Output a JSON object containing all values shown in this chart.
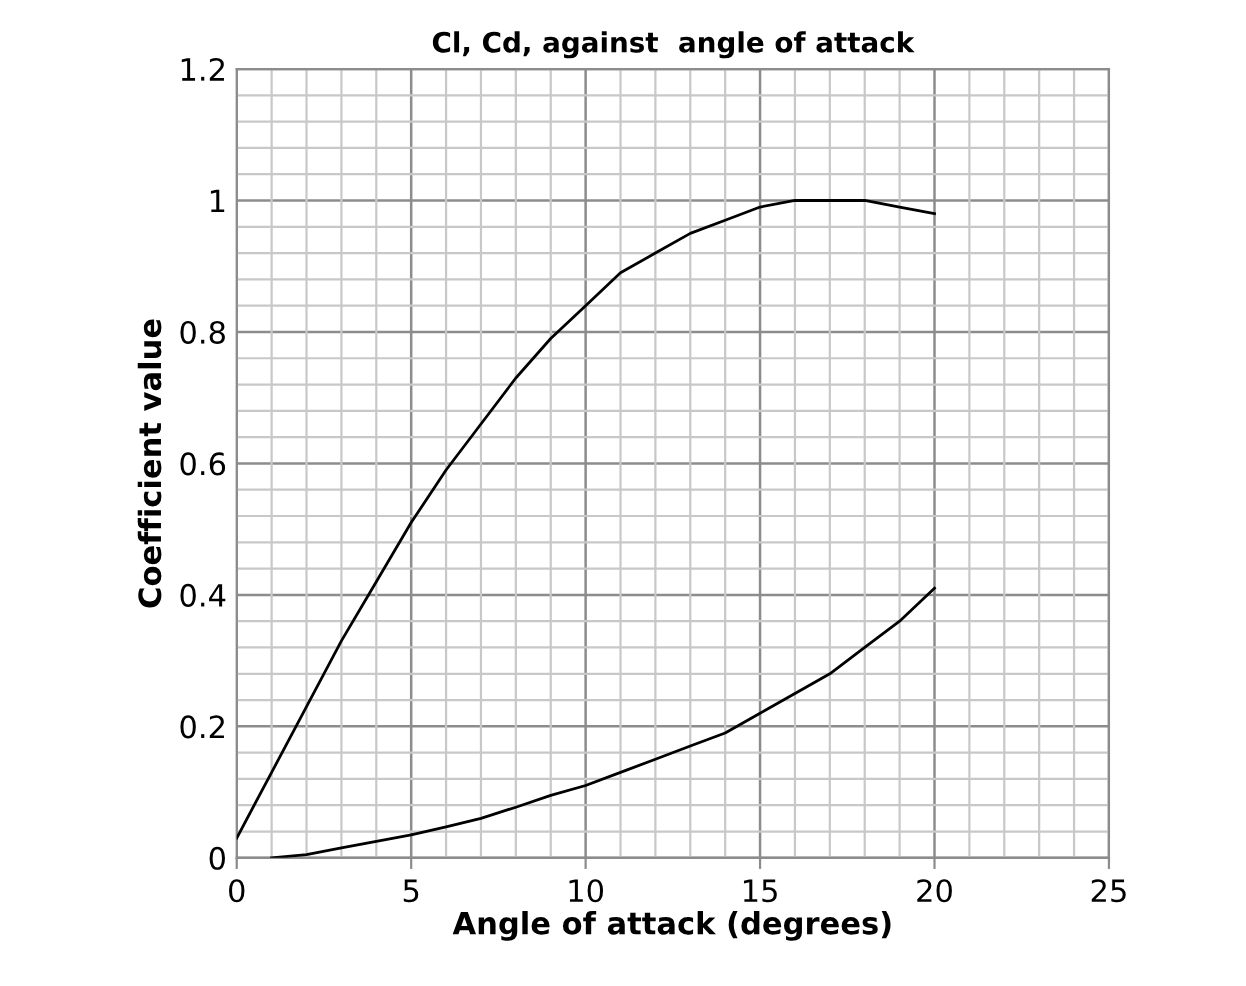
{
  "chart_data": {
    "type": "line",
    "title": "Cl, Cd, against  angle of attack",
    "xlabel": "Angle of attack (degrees)",
    "ylabel": "Coefficient value",
    "xlim": [
      0,
      25
    ],
    "xticks": [
      0,
      5,
      10,
      15,
      20,
      25
    ],
    "ylim": [
      0,
      1.2
    ],
    "yticks": [
      0,
      0.2,
      0.4,
      0.6,
      0.8,
      1,
      1.2
    ],
    "grid": true,
    "marker": "none",
    "line_style": "solid",
    "series": [
      {
        "color": "#000000",
        "x": [
          0,
          1,
          2,
          3,
          4,
          5,
          6,
          7,
          8,
          9,
          10,
          11,
          12,
          13,
          14,
          15,
          16,
          17,
          18,
          19,
          20
        ],
        "values": [
          0.03,
          0.13,
          0.23,
          0.33,
          0.42,
          0.51,
          0.59,
          0.66,
          0.73,
          0.79,
          0.84,
          0.89,
          0.92,
          0.95,
          0.97,
          0.99,
          1.0,
          1.0,
          1.0,
          0.99,
          0.98
        ]
      },
      {
        "color": "#000000",
        "x": [
          1,
          2,
          3,
          4,
          5,
          6,
          7,
          8,
          9,
          10,
          11,
          12,
          13,
          14,
          15,
          16,
          17,
          18,
          19,
          20
        ],
        "values": [
          0.0,
          0.005,
          0.015,
          0.025,
          0.035,
          0.047,
          0.06,
          0.077,
          0.095,
          0.11,
          0.13,
          0.15,
          0.17,
          0.19,
          0.22,
          0.25,
          0.28,
          0.32,
          0.36,
          0.41
        ]
      }
    ]
  }
}
